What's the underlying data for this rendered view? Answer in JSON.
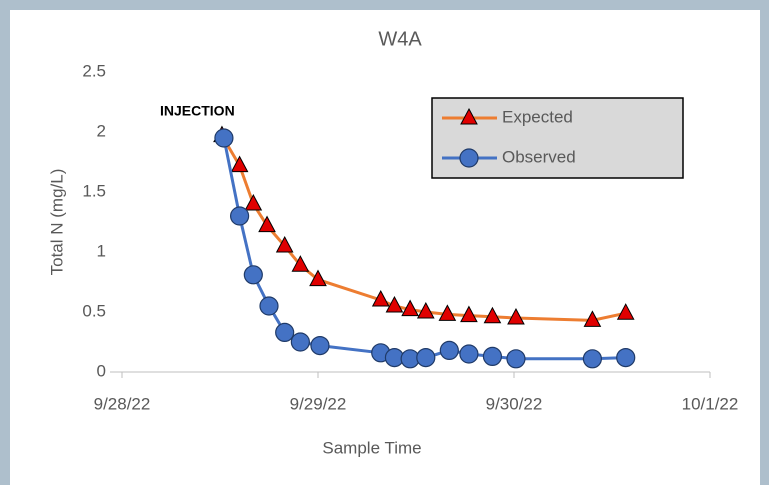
{
  "chart_data": {
    "type": "line",
    "title": "W4A",
    "xlabel": "Sample Time",
    "ylabel": "Total N (mg/L)",
    "annotation": "INJECTION",
    "xlim": [
      0,
      3
    ],
    "ylim": [
      0,
      2.5
    ],
    "xticks": [
      {
        "value": 0,
        "label": "9/28/22"
      },
      {
        "value": 1,
        "label": "9/29/22"
      },
      {
        "value": 2,
        "label": "9/30/22"
      },
      {
        "value": 3,
        "label": "10/1/22"
      }
    ],
    "yticks": [
      0,
      0.5,
      1,
      1.5,
      2,
      2.5
    ],
    "grid": false,
    "legend": "upper right",
    "series": [
      {
        "name": "Expected",
        "color": "#ed7d31",
        "marker": "triangle",
        "marker_color": "#e00000",
        "x": [
          0.51,
          0.6,
          0.67,
          0.74,
          0.83,
          0.91,
          1.0,
          1.32,
          1.39,
          1.47,
          1.55,
          1.66,
          1.77,
          1.89,
          2.01,
          2.4,
          2.57
        ],
        "values": [
          1.97,
          1.72,
          1.4,
          1.22,
          1.05,
          0.89,
          0.77,
          0.6,
          0.55,
          0.52,
          0.5,
          0.48,
          0.47,
          0.46,
          0.45,
          0.43,
          0.49
        ]
      },
      {
        "name": "Observed",
        "color": "#4472c4",
        "marker": "circle",
        "marker_color": "#4472c4",
        "x": [
          0.52,
          0.6,
          0.67,
          0.75,
          0.83,
          0.91,
          1.01,
          1.32,
          1.39,
          1.47,
          1.55,
          1.67,
          1.77,
          1.89,
          2.01,
          2.4,
          2.57
        ],
        "values": [
          1.95,
          1.3,
          0.81,
          0.55,
          0.33,
          0.25,
          0.22,
          0.16,
          0.12,
          0.11,
          0.12,
          0.18,
          0.15,
          0.13,
          0.11,
          0.11,
          0.12
        ]
      }
    ]
  }
}
